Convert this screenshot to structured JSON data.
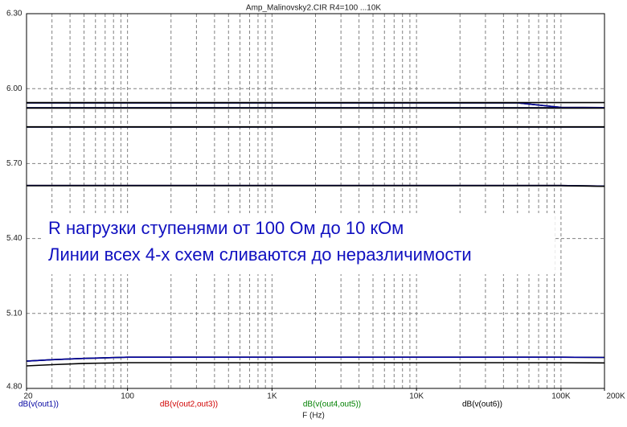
{
  "chart_data": {
    "type": "line",
    "title": "Amp_Malinovsky2.CIR R4=100 ...10K",
    "xlabel": "F (Hz)",
    "xscale": "log",
    "xlim": [
      20,
      200000
    ],
    "xticks": [
      20,
      100,
      {
        "value": 1000,
        "label": "1K"
      },
      {
        "value": 10000,
        "label": "10K"
      },
      {
        "value": 100000,
        "label": "100K"
      },
      {
        "value": 200000,
        "label": "200K"
      }
    ],
    "xgrid": [
      30,
      40,
      50,
      60,
      70,
      80,
      90,
      100,
      200,
      300,
      400,
      500,
      600,
      700,
      800,
      900,
      1000,
      2000,
      3000,
      4000,
      5000,
      6000,
      7000,
      8000,
      9000,
      10000,
      20000,
      30000,
      40000,
      50000,
      60000,
      70000,
      80000,
      90000,
      100000
    ],
    "ylim": [
      4.8,
      6.3
    ],
    "yticks": [
      {
        "value": 4.8,
        "label": "4.80"
      },
      {
        "value": 5.1,
        "label": "5.10"
      },
      {
        "value": 5.4,
        "label": "5.40"
      },
      {
        "value": 5.7,
        "label": "5.70"
      },
      {
        "value": 6.0,
        "label": "6.00"
      },
      {
        "value": 6.3,
        "label": "6.30"
      }
    ],
    "grid": true,
    "annotations": [
      "R нагрузки ступенями от 100 Ом до 10 кОм",
      "Линии всех 4-х схем сливаются до неразличимости"
    ],
    "x": [
      20,
      30,
      50,
      100,
      1000,
      10000,
      50000,
      100000,
      200000
    ],
    "series": [
      {
        "name": "dB(v(out2,out3))",
        "color": "#d00000",
        "steps": [
          [
            5.943,
            5.943,
            5.943,
            5.943,
            5.943,
            5.943,
            5.943,
            5.925,
            5.924
          ],
          [
            5.923,
            5.923,
            5.923,
            5.923,
            5.923,
            5.923,
            5.923,
            5.923,
            5.923
          ],
          [
            5.846,
            5.846,
            5.846,
            5.846,
            5.846,
            5.846,
            5.846,
            5.846,
            5.846
          ],
          [
            5.612,
            5.612,
            5.612,
            5.612,
            5.612,
            5.612,
            5.612,
            5.612,
            5.61
          ],
          [
            4.909,
            4.915,
            4.92,
            4.925,
            4.925,
            4.925,
            4.925,
            4.925,
            4.924
          ]
        ]
      },
      {
        "name": "dB(v(out4,out5))",
        "color": "#008000",
        "steps": [
          [
            5.943,
            5.943,
            5.943,
            5.943,
            5.943,
            5.943,
            5.943,
            5.925,
            5.924
          ],
          [
            5.923,
            5.923,
            5.923,
            5.923,
            5.923,
            5.923,
            5.923,
            5.923,
            5.923
          ],
          [
            5.846,
            5.846,
            5.846,
            5.846,
            5.846,
            5.846,
            5.846,
            5.846,
            5.846
          ],
          [
            5.612,
            5.612,
            5.612,
            5.612,
            5.612,
            5.612,
            5.612,
            5.612,
            5.61
          ],
          [
            4.909,
            4.915,
            4.92,
            4.925,
            4.925,
            4.925,
            4.925,
            4.925,
            4.924
          ]
        ]
      },
      {
        "name": "dB(v(out1))",
        "color": "#0000a0",
        "steps": [
          [
            5.943,
            5.943,
            5.943,
            5.943,
            5.943,
            5.943,
            5.943,
            5.925,
            5.924
          ],
          [
            5.923,
            5.923,
            5.923,
            5.923,
            5.923,
            5.923,
            5.923,
            5.923,
            5.923
          ],
          [
            5.846,
            5.846,
            5.846,
            5.846,
            5.846,
            5.846,
            5.846,
            5.846,
            5.846
          ],
          [
            5.612,
            5.612,
            5.612,
            5.612,
            5.612,
            5.612,
            5.612,
            5.612,
            5.61
          ],
          [
            4.909,
            4.915,
            4.92,
            4.925,
            4.925,
            4.925,
            4.925,
            4.925,
            4.924
          ]
        ]
      },
      {
        "name": "dB(v(out6))",
        "color": "#000000",
        "steps": [
          [
            5.944,
            5.944,
            5.944,
            5.944,
            5.944,
            5.944,
            5.944,
            5.944,
            5.944
          ],
          [
            5.922,
            5.922,
            5.922,
            5.922,
            5.922,
            5.922,
            5.922,
            5.922,
            5.922
          ],
          [
            5.847,
            5.847,
            5.847,
            5.847,
            5.847,
            5.847,
            5.847,
            5.847,
            5.847
          ],
          [
            5.611,
            5.611,
            5.611,
            5.611,
            5.611,
            5.611,
            5.611,
            5.611,
            5.609
          ],
          [
            4.89,
            4.895,
            4.9,
            4.903,
            4.903,
            4.903,
            4.903,
            4.903,
            4.902
          ]
        ]
      }
    ]
  }
}
